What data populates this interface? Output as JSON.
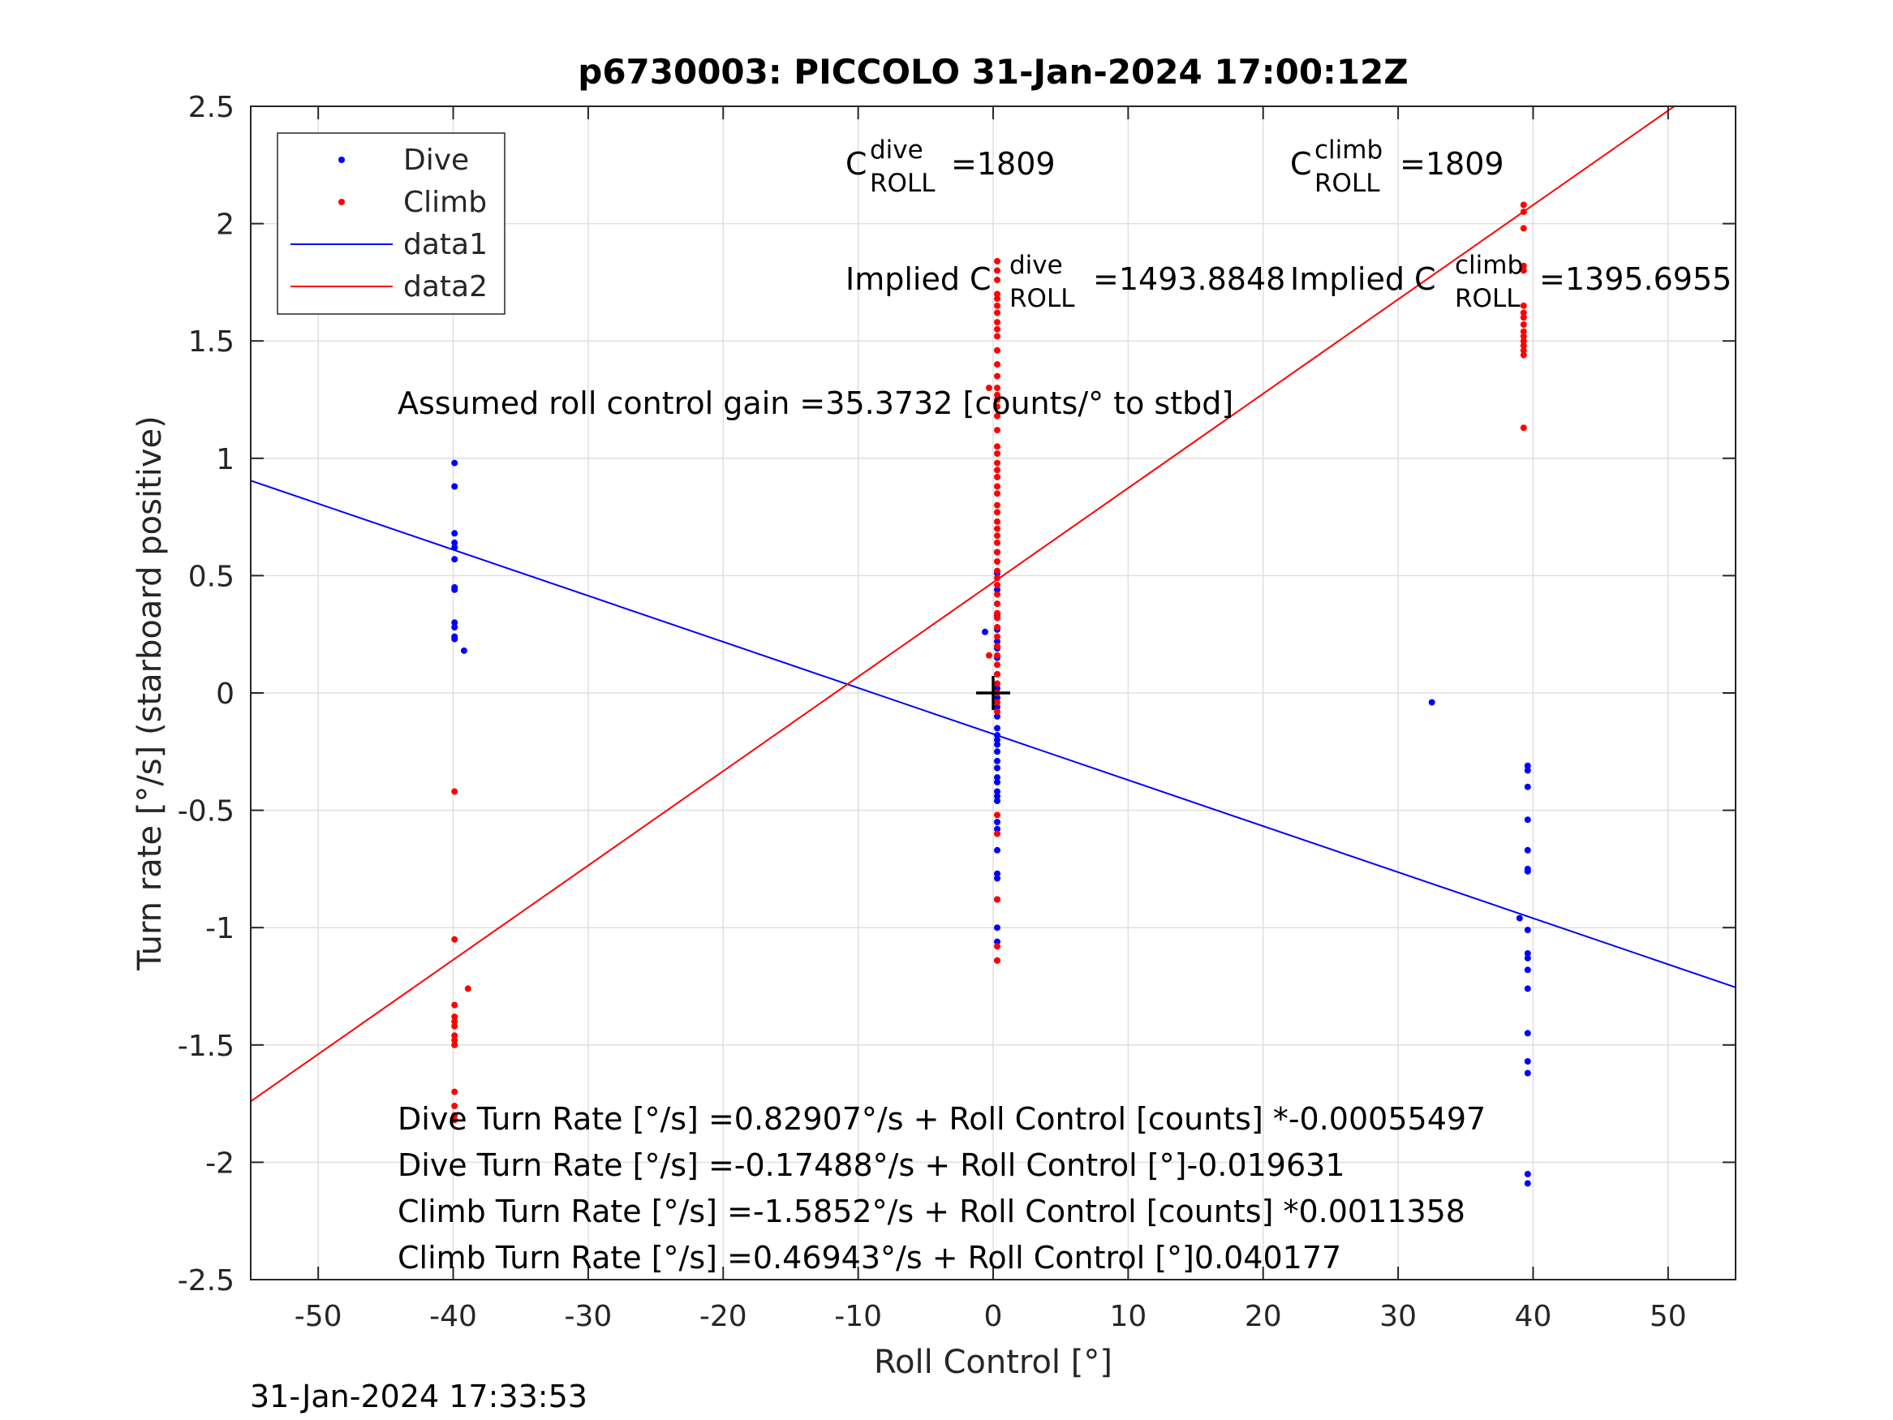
{
  "chart_data": {
    "type": "scatter",
    "title": "p6730003: PICCOLO 31-Jan-2024 17:00:12Z",
    "xlabel": "Roll Control [°]",
    "ylabel": "Turn rate [°/s] (starboard positive)",
    "xlim": [
      -55,
      55
    ],
    "ylim": [
      -2.5,
      2.5
    ],
    "grid": true,
    "x_ticks": [
      -50,
      -40,
      -30,
      -20,
      -10,
      0,
      10,
      20,
      30,
      40,
      50
    ],
    "x_tick_labels": [
      "-50",
      "-40",
      "-30",
      "-20",
      "-10",
      "0",
      "10",
      "20",
      "30",
      "40",
      "50"
    ],
    "y_ticks": [
      2.5,
      2,
      1.5,
      1,
      0.5,
      0,
      -0.5,
      -1,
      -1.5,
      -2,
      -2.5
    ],
    "y_tick_labels": [
      "2.5",
      "2",
      "1.5",
      "1",
      "0.5",
      "0",
      "-0.5",
      "-1",
      "-1.5",
      "-2",
      "-2.5"
    ],
    "legend": {
      "placement": "top-left",
      "entries": [
        {
          "label": "Dive",
          "kind": "marker",
          "color": "#0000ff"
        },
        {
          "label": "Climb",
          "kind": "marker",
          "color": "#ff0000"
        },
        {
          "label": "data1",
          "kind": "line",
          "color": "#0000ff"
        },
        {
          "label": "data2",
          "kind": "line",
          "color": "#ff0000"
        }
      ]
    },
    "series": [
      {
        "name": "Dive",
        "color": "#0000ff",
        "kind": "scatter",
        "points": [
          [
            -39.9,
            0.98
          ],
          [
            -39.9,
            0.88
          ],
          [
            -39.9,
            0.68
          ],
          [
            -39.9,
            0.64
          ],
          [
            -39.9,
            0.62
          ],
          [
            -39.9,
            0.57
          ],
          [
            -39.9,
            0.45
          ],
          [
            -39.9,
            0.44
          ],
          [
            -39.9,
            0.3
          ],
          [
            -39.9,
            0.28
          ],
          [
            -39.9,
            0.24
          ],
          [
            -39.9,
            0.23
          ],
          [
            -39.2,
            0.18
          ],
          [
            -0.6,
            0.26
          ],
          [
            0.3,
            0.6
          ],
          [
            0.3,
            0.51
          ],
          [
            0.3,
            0.44
          ],
          [
            0.3,
            0.38
          ],
          [
            0.3,
            0.33
          ],
          [
            0.3,
            0.27
          ],
          [
            0.3,
            0.22
          ],
          [
            0.3,
            0.19
          ],
          [
            0.3,
            0.15
          ],
          [
            0.3,
            0.08
          ],
          [
            0.3,
            0.02
          ],
          [
            0.3,
            -0.02
          ],
          [
            0.3,
            -0.06
          ],
          [
            0.3,
            -0.1
          ],
          [
            0.3,
            -0.15
          ],
          [
            0.3,
            -0.18
          ],
          [
            0.3,
            -0.2
          ],
          [
            0.3,
            -0.22
          ],
          [
            0.3,
            -0.25
          ],
          [
            0.3,
            -0.29
          ],
          [
            0.3,
            -0.32
          ],
          [
            0.3,
            -0.36
          ],
          [
            0.3,
            -0.38
          ],
          [
            0.3,
            -0.42
          ],
          [
            0.3,
            -0.44
          ],
          [
            0.3,
            -0.46
          ],
          [
            0.3,
            -0.55
          ],
          [
            0.3,
            -0.58
          ],
          [
            0.3,
            -0.67
          ],
          [
            0.3,
            -0.77
          ],
          [
            0.3,
            -0.79
          ],
          [
            0.3,
            -0.88
          ],
          [
            0.3,
            -1.0
          ],
          [
            0.3,
            -1.06
          ],
          [
            0.3,
            -1.14
          ],
          [
            32.5,
            -0.04
          ],
          [
            39.0,
            -0.96
          ],
          [
            39.6,
            -0.31
          ],
          [
            39.6,
            -0.33
          ],
          [
            39.6,
            -0.4
          ],
          [
            39.6,
            -0.54
          ],
          [
            39.6,
            -0.67
          ],
          [
            39.6,
            -0.75
          ],
          [
            39.6,
            -0.76
          ],
          [
            39.6,
            -1.01
          ],
          [
            39.6,
            -1.11
          ],
          [
            39.6,
            -1.13
          ],
          [
            39.6,
            -1.18
          ],
          [
            39.6,
            -1.26
          ],
          [
            39.6,
            -1.45
          ],
          [
            39.6,
            -1.57
          ],
          [
            39.6,
            -1.62
          ],
          [
            39.6,
            -2.05
          ],
          [
            39.6,
            -2.09
          ]
        ]
      },
      {
        "name": "Climb",
        "color": "#ff0000",
        "kind": "scatter",
        "points": [
          [
            -39.9,
            -0.42
          ],
          [
            -39.9,
            -1.05
          ],
          [
            -38.9,
            -1.26
          ],
          [
            -39.9,
            -1.33
          ],
          [
            -39.9,
            -1.38
          ],
          [
            -39.9,
            -1.4
          ],
          [
            -39.9,
            -1.42
          ],
          [
            -39.9,
            -1.46
          ],
          [
            -39.9,
            -1.48
          ],
          [
            -39.9,
            -1.5
          ],
          [
            -39.9,
            -1.7
          ],
          [
            -39.9,
            -1.76
          ],
          [
            -39.9,
            -1.8
          ],
          [
            -39.9,
            -1.82
          ],
          [
            0.3,
            1.84
          ],
          [
            0.3,
            1.8
          ],
          [
            0.3,
            1.76
          ],
          [
            0.3,
            1.7
          ],
          [
            0.3,
            1.68
          ],
          [
            0.3,
            1.65
          ],
          [
            0.3,
            1.62
          ],
          [
            0.3,
            1.58
          ],
          [
            0.3,
            1.55
          ],
          [
            0.3,
            1.52
          ],
          [
            0.3,
            1.46
          ],
          [
            0.3,
            1.4
          ],
          [
            0.3,
            1.35
          ],
          [
            0.3,
            1.3
          ],
          [
            0.3,
            1.27
          ],
          [
            0.3,
            1.25
          ],
          [
            0.3,
            1.22
          ],
          [
            0.3,
            1.18
          ],
          [
            0.3,
            1.12
          ],
          [
            0.3,
            1.05
          ],
          [
            0.3,
            1.02
          ],
          [
            0.3,
            0.98
          ],
          [
            0.3,
            0.95
          ],
          [
            0.3,
            0.92
          ],
          [
            0.3,
            0.88
          ],
          [
            0.3,
            0.85
          ],
          [
            0.3,
            0.8
          ],
          [
            0.3,
            0.77
          ],
          [
            0.3,
            0.73
          ],
          [
            0.3,
            0.7
          ],
          [
            0.3,
            0.67
          ],
          [
            0.3,
            0.64
          ],
          [
            0.3,
            0.6
          ],
          [
            0.3,
            0.56
          ],
          [
            0.3,
            0.52
          ],
          [
            0.3,
            0.49
          ],
          [
            0.3,
            0.46
          ],
          [
            0.3,
            0.42
          ],
          [
            0.3,
            0.38
          ],
          [
            0.3,
            0.34
          ],
          [
            0.3,
            0.32
          ],
          [
            0.3,
            0.28
          ],
          [
            0.3,
            0.24
          ],
          [
            0.3,
            0.2
          ],
          [
            0.3,
            0.16
          ],
          [
            0.3,
            0.12
          ],
          [
            0.3,
            0.08
          ],
          [
            0.3,
            0.04
          ],
          [
            0.3,
            0.0
          ],
          [
            0.3,
            -0.04
          ],
          [
            0.3,
            -0.08
          ],
          [
            0.3,
            -0.52
          ],
          [
            0.3,
            -0.6
          ],
          [
            0.3,
            -0.88
          ],
          [
            0.3,
            -1.08
          ],
          [
            0.3,
            -1.14
          ],
          [
            -0.3,
            0.16
          ],
          [
            -0.3,
            1.3
          ],
          [
            39.3,
            2.08
          ],
          [
            39.3,
            2.05
          ],
          [
            39.3,
            1.98
          ],
          [
            39.3,
            1.82
          ],
          [
            39.3,
            1.8
          ],
          [
            39.3,
            1.65
          ],
          [
            39.3,
            1.62
          ],
          [
            39.3,
            1.6
          ],
          [
            39.3,
            1.57
          ],
          [
            39.3,
            1.54
          ],
          [
            39.3,
            1.52
          ],
          [
            39.3,
            1.5
          ],
          [
            39.3,
            1.48
          ],
          [
            39.3,
            1.46
          ],
          [
            39.3,
            1.44
          ],
          [
            39.3,
            1.13
          ]
        ]
      },
      {
        "name": "data1",
        "color": "#0000ff",
        "kind": "line",
        "points": [
          [
            -55,
            0.9048
          ],
          [
            55,
            -1.2546
          ]
        ]
      },
      {
        "name": "data2",
        "color": "#ff0000",
        "kind": "line",
        "points": [
          [
            -55,
            -1.7403
          ],
          [
            50.46,
            2.5
          ]
        ]
      }
    ],
    "marker": {
      "x": 0,
      "y": 0,
      "symbol": "+",
      "color": "#000000"
    },
    "annotations": {
      "c_dive": {
        "base": "C",
        "sup": "dive",
        "sub": "ROLL",
        "value": "=1809"
      },
      "c_climb": {
        "base": "C",
        "sup": "climb",
        "sub": "ROLL",
        "value": "=1809"
      },
      "implied_dive": {
        "base": "Implied C",
        "sup": "dive",
        "sub": "ROLL",
        "value": "=1493.8848"
      },
      "implied_climb": {
        "base": "Implied C",
        "sup": "climb",
        "sub": "ROLL",
        "value": "=1395.6955"
      },
      "gain": "Assumed roll control gain =35.3732 [counts/° to stbd]",
      "eq1": "Dive Turn Rate [°/s] =0.82907°/s + Roll Control [counts] *-0.00055497",
      "eq2": "Dive Turn Rate [°/s] =-0.17488°/s + Roll Control [°]-0.019631",
      "eq3": "Climb Turn Rate [°/s] =-1.5852°/s + Roll Control [counts] *0.0011358",
      "eq4": "Climb Turn Rate [°/s] =0.46943°/s + Roll Control [°]0.040177"
    }
  },
  "footer": {
    "timestamp": "31-Jan-2024 17:33:53"
  }
}
